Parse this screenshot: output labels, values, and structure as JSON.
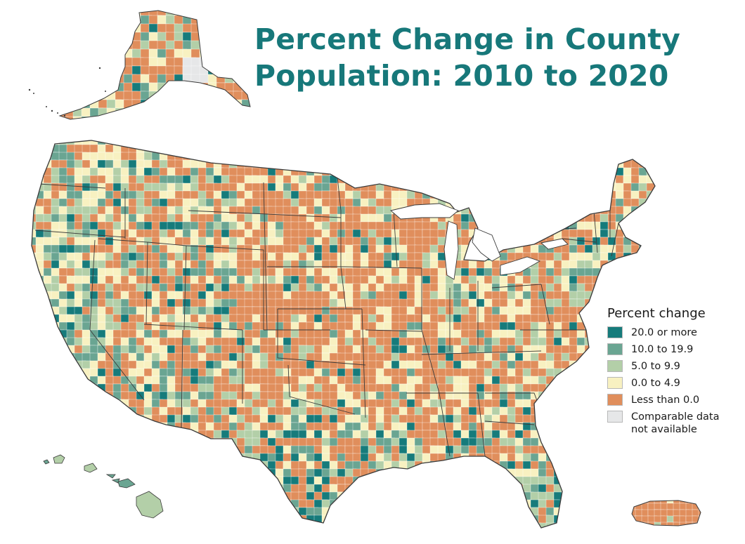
{
  "title": {
    "line1": "Percent Change in County",
    "line2": "Population: 2010 to 2020"
  },
  "legend": {
    "title": "Percent change",
    "items": [
      {
        "label": "20.0 or more",
        "color": "#167b7b"
      },
      {
        "label": "10.0 to 19.9",
        "color": "#6aa592"
      },
      {
        "label": "5.0 to 9.9",
        "color": "#b3cfa8"
      },
      {
        "label": "0.0 to 4.9",
        "color": "#f8f1c1"
      },
      {
        "label": "Less than 0.0",
        "color": "#e08e5c"
      },
      {
        "label": "Comparable data\nnot available",
        "color": "#e6e7e8"
      }
    ]
  },
  "map": {
    "regions": [
      "contiguous-us",
      "alaska",
      "hawaii",
      "puerto-rico"
    ],
    "boundary_color": "#3a3a3a",
    "county_line_color": "#ffffff"
  }
}
